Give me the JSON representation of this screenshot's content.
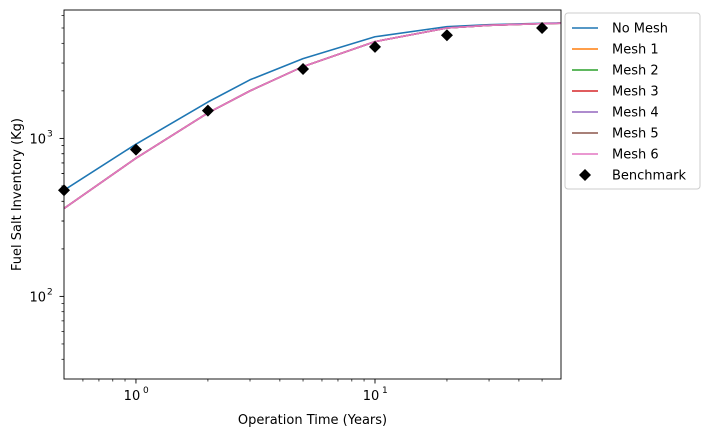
{
  "chart_data": {
    "type": "line",
    "xlabel": "Operation Time (Years)",
    "ylabel": "Fuel Salt Inventory (Kg)",
    "xscale": "log",
    "yscale": "log",
    "xlim": [
      0.5,
      60
    ],
    "ylim": [
      30,
      6500
    ],
    "x_tick_labels": [
      {
        "value": 1,
        "base": "10",
        "exp": "0"
      },
      {
        "value": 10,
        "base": "10",
        "exp": "1"
      }
    ],
    "y_tick_labels": [
      {
        "value": 100,
        "base": "10",
        "exp": "2"
      },
      {
        "value": 1000,
        "base": "10",
        "exp": "3"
      }
    ],
    "grid": false,
    "legend_position": "outside-upper-right",
    "series": [
      {
        "name": "No Mesh",
        "color": "#1f77b4",
        "style": "line",
        "x": [
          0.5,
          1,
          2,
          3,
          5,
          10,
          20,
          30,
          50,
          60
        ],
        "y": [
          470,
          920,
          1700,
          2350,
          3200,
          4400,
          5100,
          5250,
          5350,
          5380
        ]
      },
      {
        "name": "Mesh 1",
        "color": "#ff7f0e",
        "style": "line",
        "x": [
          0.5,
          1,
          2,
          3,
          5,
          10,
          20,
          30,
          50,
          60
        ],
        "y": [
          360,
          750,
          1450,
          2000,
          2850,
          4100,
          5000,
          5200,
          5330,
          5360
        ]
      },
      {
        "name": "Mesh 2",
        "color": "#2ca02c",
        "style": "line",
        "x": [
          0.5,
          1,
          2,
          3,
          5,
          10,
          20,
          30,
          50,
          60
        ],
        "y": [
          360,
          750,
          1450,
          2000,
          2850,
          4100,
          5000,
          5200,
          5330,
          5360
        ]
      },
      {
        "name": "Mesh 3",
        "color": "#d62728",
        "style": "line",
        "x": [
          0.5,
          1,
          2,
          3,
          5,
          10,
          20,
          30,
          50,
          60
        ],
        "y": [
          360,
          750,
          1450,
          2000,
          2850,
          4100,
          5000,
          5200,
          5330,
          5360
        ]
      },
      {
        "name": "Mesh 4",
        "color": "#9467bd",
        "style": "line",
        "x": [
          0.5,
          1,
          2,
          3,
          5,
          10,
          20,
          30,
          50,
          60
        ],
        "y": [
          360,
          750,
          1450,
          2000,
          2850,
          4100,
          5000,
          5200,
          5330,
          5360
        ]
      },
      {
        "name": "Mesh 5",
        "color": "#8c564b",
        "style": "line",
        "x": [
          0.5,
          1,
          2,
          3,
          5,
          10,
          20,
          30,
          50,
          60
        ],
        "y": [
          360,
          750,
          1450,
          2000,
          2850,
          4100,
          5000,
          5200,
          5330,
          5360
        ]
      },
      {
        "name": "Mesh 6",
        "color": "#e377c2",
        "style": "line",
        "x": [
          0.5,
          1,
          2,
          3,
          5,
          10,
          20,
          30,
          50,
          60
        ],
        "y": [
          360,
          750,
          1450,
          2000,
          2850,
          4100,
          5000,
          5200,
          5330,
          5360
        ]
      },
      {
        "name": "Benchmark",
        "color": "#000000",
        "style": "marker",
        "marker": "diamond",
        "x": [
          0.5,
          1,
          2,
          5,
          10,
          20,
          50
        ],
        "y": [
          470,
          850,
          1500,
          2750,
          3800,
          4500,
          5000
        ]
      }
    ]
  }
}
